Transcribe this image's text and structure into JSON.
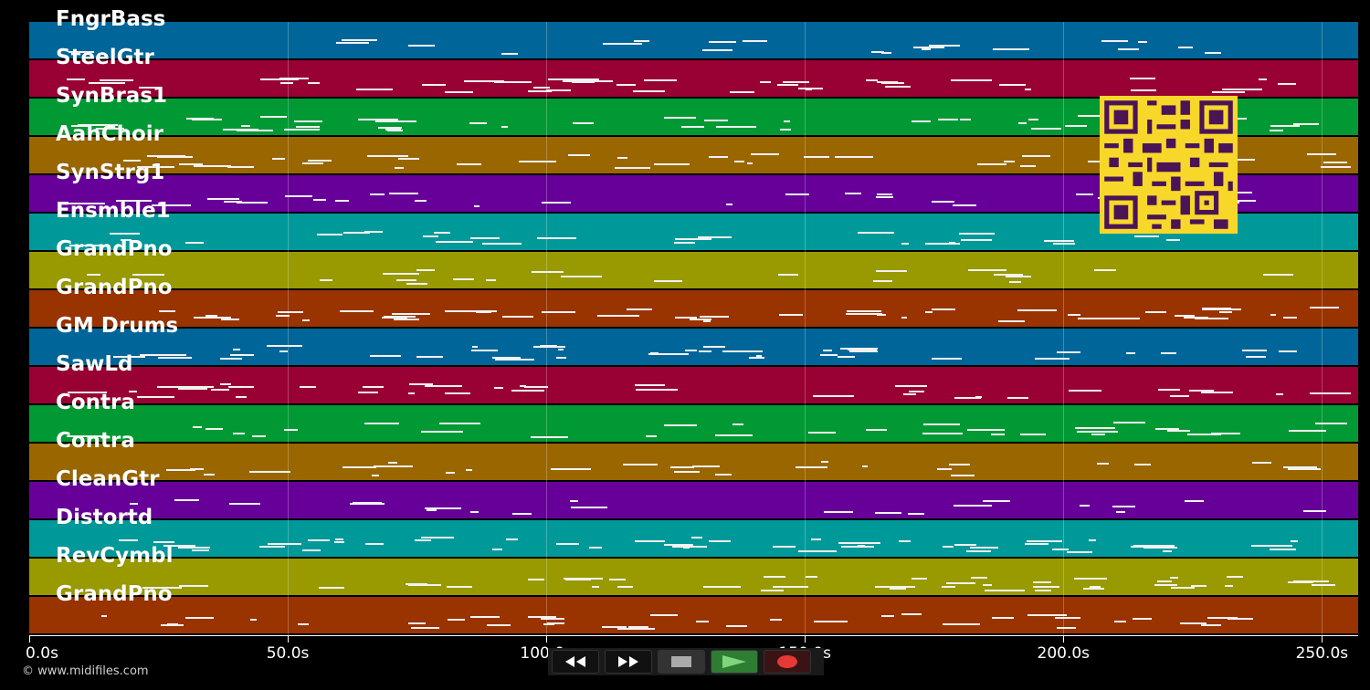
{
  "tracks": [
    {
      "name": "FngrBass",
      "color": "#006699"
    },
    {
      "name": "SteelGtr",
      "color": "#990033"
    },
    {
      "name": "SynBras1",
      "color": "#009933"
    },
    {
      "name": "AahChoir",
      "color": "#996600"
    },
    {
      "name": "SynStrg1",
      "color": "#660099"
    },
    {
      "name": "Ensmble1",
      "color": "#009999"
    },
    {
      "name": "GrandPno",
      "color": "#999900"
    },
    {
      "name": "GrandPno",
      "color": "#993300"
    },
    {
      "name": "GM Drums",
      "color": "#006699"
    },
    {
      "name": "SawLd",
      "color": "#990033"
    },
    {
      "name": "Contra",
      "color": "#009933"
    },
    {
      "name": "Contra",
      "color": "#996600"
    },
    {
      "name": "CleanGtr",
      "color": "#660099"
    },
    {
      "name": "Distortd",
      "color": "#009999"
    },
    {
      "name": "RevCymbl",
      "color": "#999900"
    },
    {
      "name": "GrandPno",
      "color": "#993300"
    }
  ],
  "timeline": {
    "ticks": [
      "0.0s",
      "50.0s",
      "100.0s",
      "150.0s",
      "200.0s",
      "250.0s"
    ],
    "tick_seconds": [
      0,
      50,
      100,
      150,
      200,
      250
    ],
    "max_seconds": 257
  },
  "copyright": "© www.midifiles.com",
  "transport": {
    "rewind_icon": "rewind-icon",
    "forward_icon": "fast-forward-icon",
    "stop_icon": "stop-icon",
    "play_icon": "play-icon",
    "record_icon": "record-icon",
    "play_color": "#2e7d32",
    "record_color": "#e53935"
  }
}
